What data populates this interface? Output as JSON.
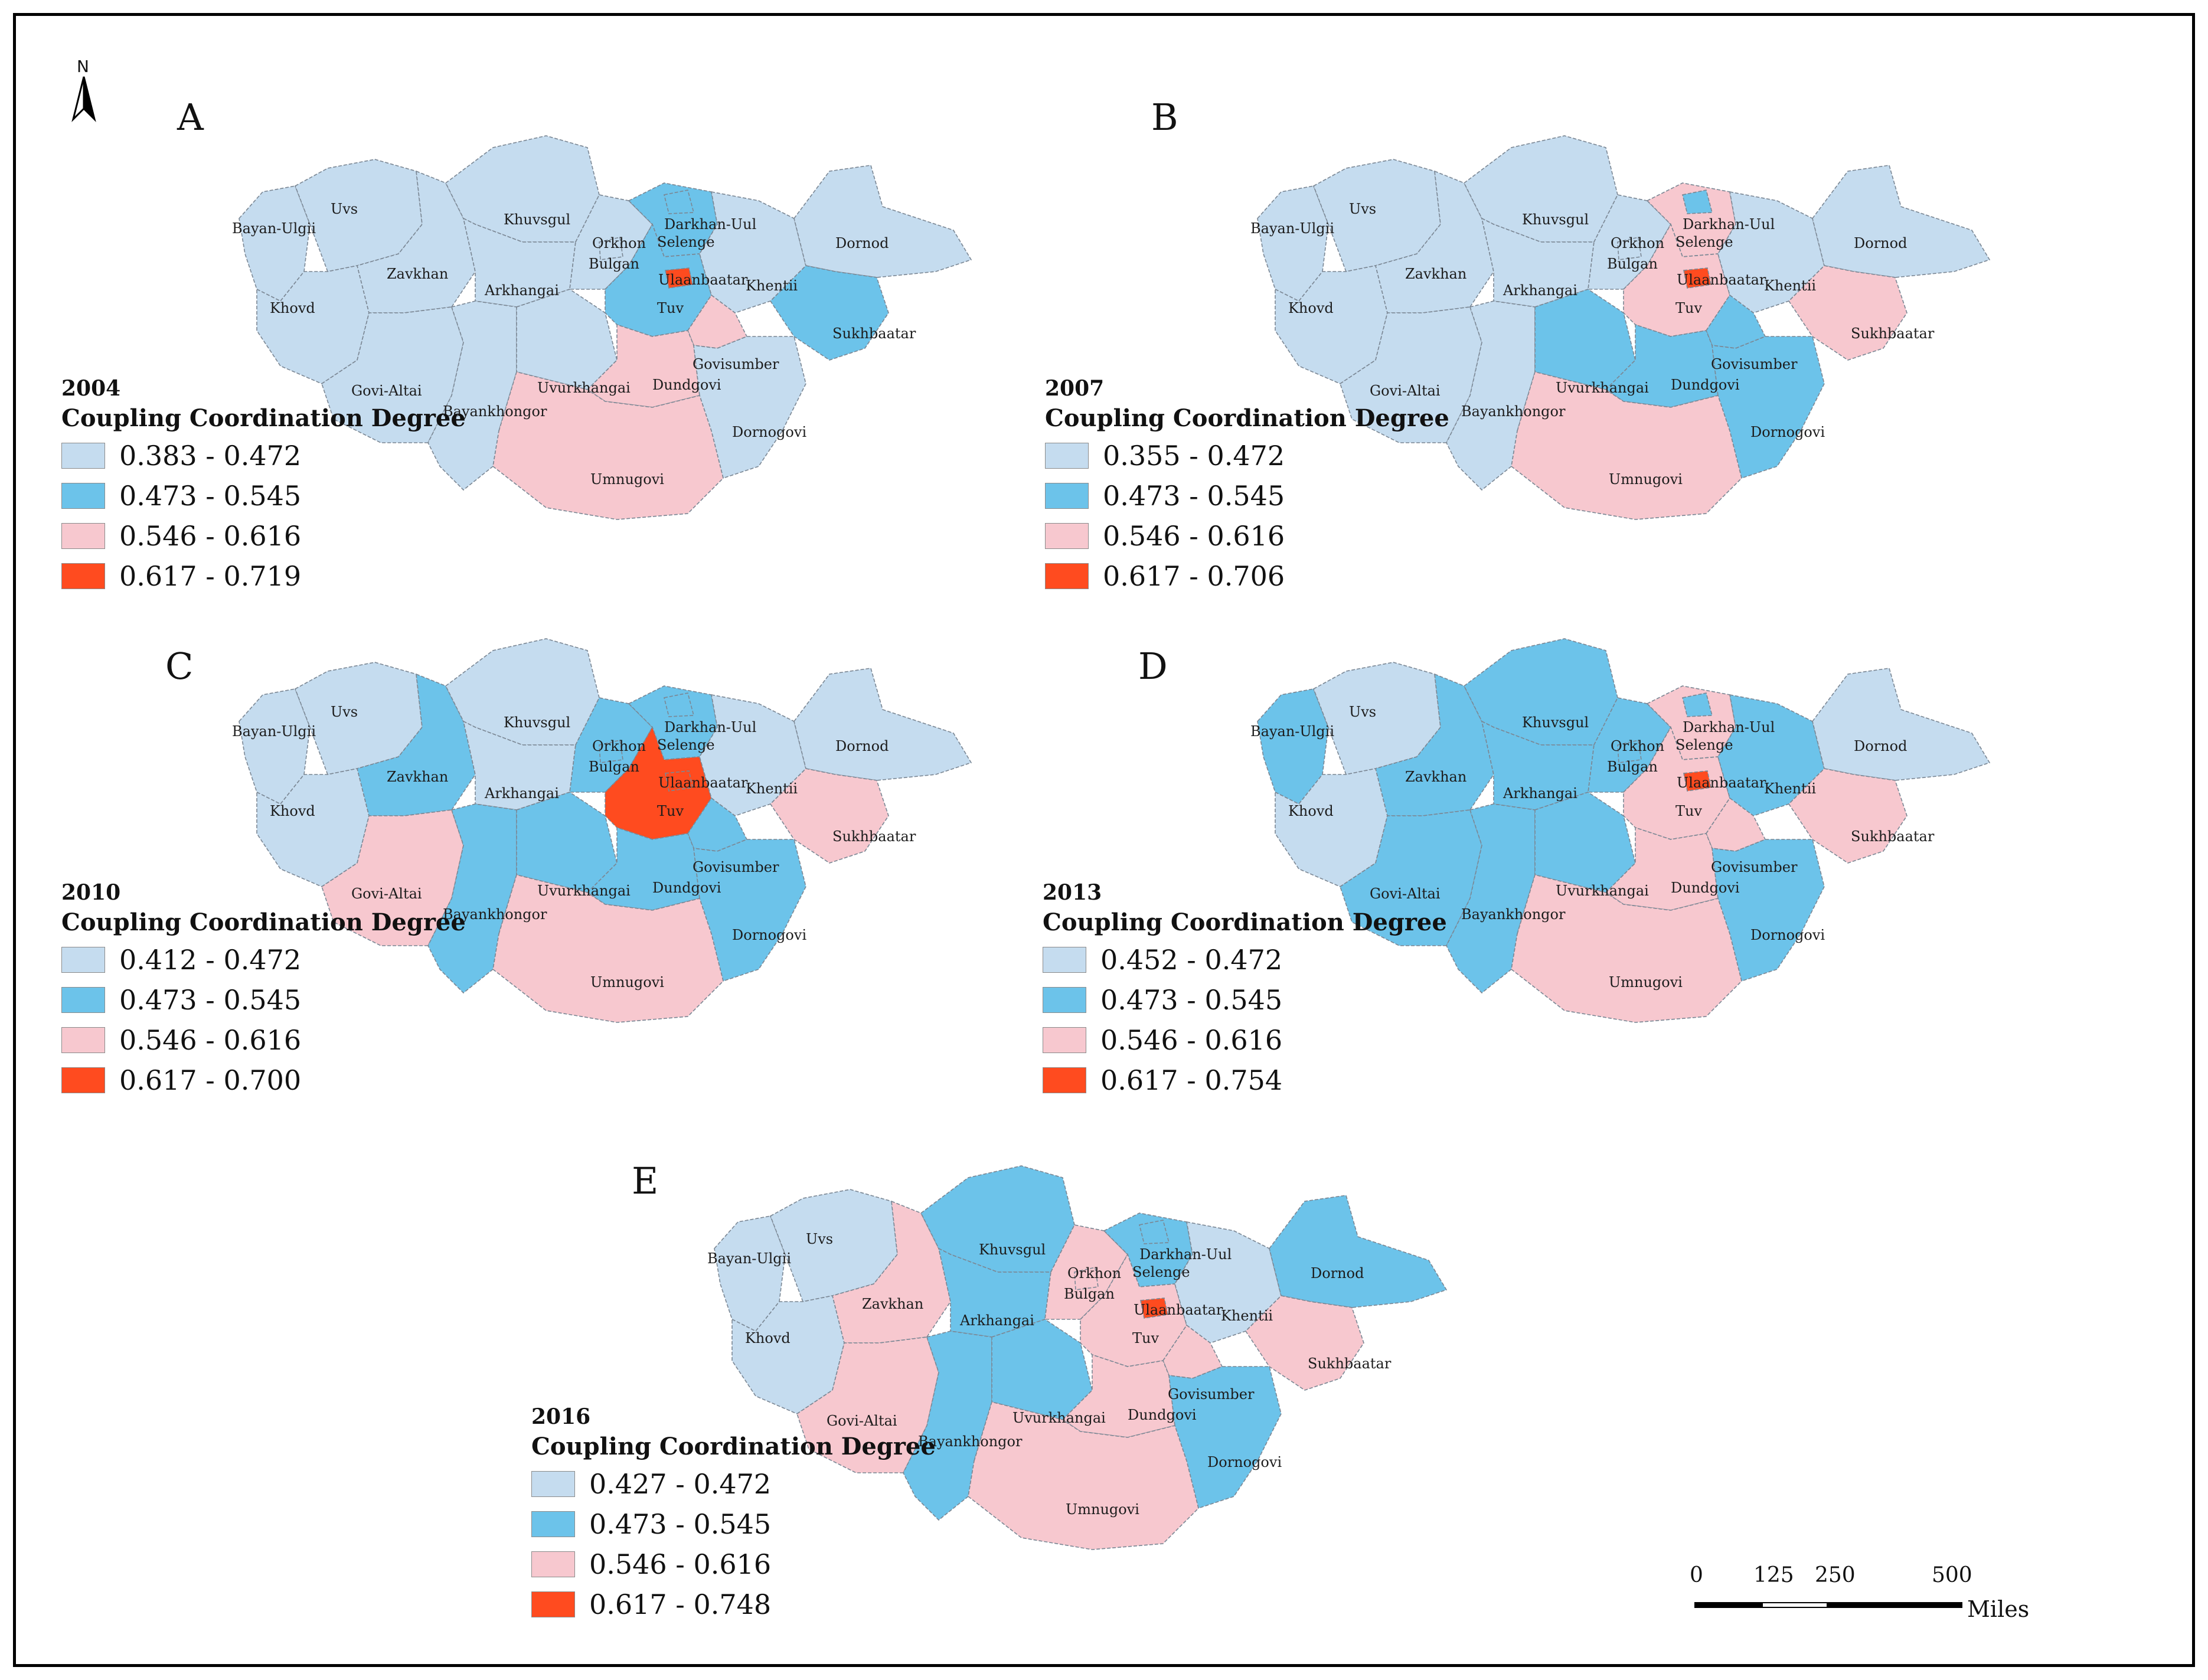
{
  "figure": {
    "north_label": "N"
  },
  "colors": {
    "class1": "#c5dcef",
    "class2": "#6cc3ea",
    "class3": "#f7c8cf",
    "class4": "#ff4b1f",
    "border": "#7b8794"
  },
  "provinces": {
    "uvs": "Uvs",
    "bayan_ulgii": "Bayan-Ulgii",
    "khovd": "Khovd",
    "zavkhan": "Zavkhan",
    "govi_altai": "Govi-Altai",
    "khuvsgul": "Khuvsgul",
    "arkhangai": "Arkhangai",
    "bayankhongor": "Bayankhongor",
    "uvurkhangai": "Uvurkhangai",
    "orkhon": "Orkhon",
    "bulgan": "Bulgan",
    "darkhan_uul": "Darkhan-Uul",
    "selenge": "Selenge",
    "ulaanbaatar": "Ulaanbaatar",
    "tuv": "Tuv",
    "khentii": "Khentii",
    "dornod": "Dornod",
    "sukhbaatar": "Sukhbaatar",
    "govisumber": "Govisumber",
    "dundgovi": "Dundgovi",
    "dornogovi": "Dornogovi",
    "umnugovi": "Umnugovi"
  },
  "panels": [
    {
      "letter": "A",
      "year": "2004",
      "legend_title": "Coupling Coordination Degree",
      "legend": [
        "0.383 - 0.472",
        "0.473 - 0.545",
        "0.546 - 0.616",
        "0.617 - 0.719"
      ],
      "classes": {
        "uvs": 1,
        "bayan_ulgii": 1,
        "khovd": 1,
        "zavkhan": 1,
        "govi_altai": 1,
        "khuvsgul": 1,
        "arkhangai": 1,
        "bayankhongor": 1,
        "uvurkhangai": 1,
        "orkhon": 1,
        "bulgan": 1,
        "darkhan_uul": 2,
        "selenge": 2,
        "ulaanbaatar": 4,
        "tuv": 2,
        "khentii": 1,
        "dornod": 1,
        "sukhbaatar": 2,
        "govisumber": 3,
        "dundgovi": 3,
        "dornogovi": 1,
        "umnugovi": 3
      }
    },
    {
      "letter": "B",
      "year": "2007",
      "legend_title": "Coupling Coordination Degree",
      "legend": [
        "0.355 - 0.472",
        "0.473 - 0.545",
        "0.546 - 0.616",
        "0.617 - 0.706"
      ],
      "classes": {
        "uvs": 1,
        "bayan_ulgii": 1,
        "khovd": 1,
        "zavkhan": 1,
        "govi_altai": 1,
        "khuvsgul": 1,
        "arkhangai": 1,
        "bayankhongor": 1,
        "uvurkhangai": 2,
        "orkhon": 1,
        "bulgan": 1,
        "darkhan_uul": 2,
        "selenge": 3,
        "ulaanbaatar": 4,
        "tuv": 3,
        "khentii": 1,
        "dornod": 1,
        "sukhbaatar": 3,
        "govisumber": 2,
        "dundgovi": 2,
        "dornogovi": 2,
        "umnugovi": 3
      }
    },
    {
      "letter": "C",
      "year": "2010",
      "legend_title": "Coupling Coordination Degree",
      "legend": [
        "0.412 - 0.472",
        "0.473 - 0.545",
        "0.546 - 0.616",
        "0.617 - 0.700"
      ],
      "classes": {
        "uvs": 1,
        "bayan_ulgii": 1,
        "khovd": 1,
        "zavkhan": 2,
        "govi_altai": 3,
        "khuvsgul": 1,
        "arkhangai": 1,
        "bayankhongor": 2,
        "uvurkhangai": 2,
        "orkhon": 2,
        "bulgan": 2,
        "darkhan_uul": 2,
        "selenge": 2,
        "ulaanbaatar": 4,
        "tuv": 4,
        "khentii": 1,
        "dornod": 1,
        "sukhbaatar": 3,
        "govisumber": 2,
        "dundgovi": 2,
        "dornogovi": 2,
        "umnugovi": 3
      }
    },
    {
      "letter": "D",
      "year": "2013",
      "legend_title": "Coupling Coordination Degree",
      "legend": [
        "0.452 - 0.472",
        "0.473 - 0.545",
        "0.546 - 0.616",
        "0.617 - 0.754"
      ],
      "classes": {
        "uvs": 1,
        "bayan_ulgii": 2,
        "khovd": 1,
        "zavkhan": 2,
        "govi_altai": 2,
        "khuvsgul": 2,
        "arkhangai": 2,
        "bayankhongor": 2,
        "uvurkhangai": 2,
        "orkhon": 2,
        "bulgan": 2,
        "darkhan_uul": 2,
        "selenge": 3,
        "ulaanbaatar": 4,
        "tuv": 3,
        "khentii": 2,
        "dornod": 1,
        "sukhbaatar": 3,
        "govisumber": 3,
        "dundgovi": 3,
        "dornogovi": 2,
        "umnugovi": 3
      }
    },
    {
      "letter": "E",
      "year": "2016",
      "legend_title": "Coupling Coordination Degree",
      "legend": [
        "0.427 - 0.472",
        "0.473 - 0.545",
        "0.546 - 0.616",
        "0.617 - 0.748"
      ],
      "classes": {
        "uvs": 1,
        "bayan_ulgii": 1,
        "khovd": 1,
        "zavkhan": 3,
        "govi_altai": 3,
        "khuvsgul": 2,
        "arkhangai": 2,
        "bayankhongor": 2,
        "uvurkhangai": 2,
        "orkhon": 3,
        "bulgan": 3,
        "darkhan_uul": 2,
        "selenge": 2,
        "ulaanbaatar": 4,
        "tuv": 3,
        "khentii": 1,
        "dornod": 2,
        "sukhbaatar": 3,
        "govisumber": 3,
        "dundgovi": 3,
        "dornogovi": 2,
        "umnugovi": 3
      }
    }
  ],
  "scale_bar": {
    "ticks": [
      "0",
      "125",
      "250",
      "500"
    ],
    "unit": "Miles"
  }
}
